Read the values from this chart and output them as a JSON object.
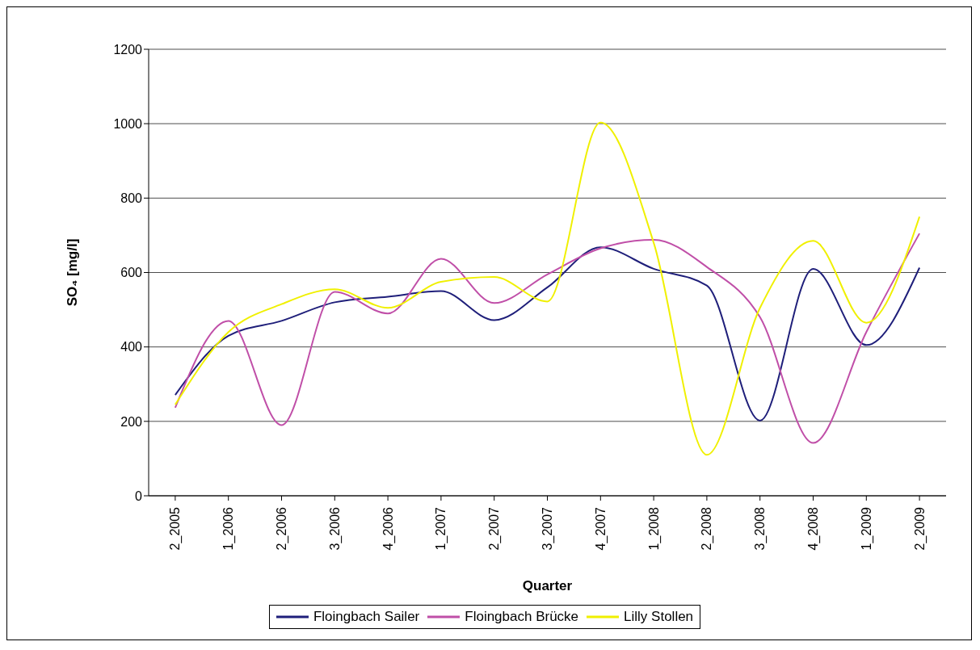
{
  "chart_data": {
    "type": "line",
    "xlabel": "Quarter",
    "ylabel": "SO₄ [mg/l]",
    "categories": [
      "2_2005",
      "1_2006",
      "2_2006",
      "3_2006",
      "4_2006",
      "1_2007",
      "2_2007",
      "3_2007",
      "4_2007",
      "1_2008",
      "2_2008",
      "3_2008",
      "4_2008",
      "1_2009",
      "2_2009"
    ],
    "series": [
      {
        "name": "Floingbach Sailer",
        "color": "#1f1f7a",
        "values": [
          271,
          430,
          470,
          520,
          535,
          550,
          472,
          560,
          668,
          610,
          565,
          202,
          610,
          405,
          613
        ]
      },
      {
        "name": "Floingbach Brücke",
        "color": "#c04fa8",
        "values": [
          237,
          470,
          190,
          548,
          490,
          637,
          518,
          595,
          665,
          688,
          615,
          480,
          142,
          440,
          705
        ]
      },
      {
        "name": "Lilly Stollen",
        "color": "#f0f000",
        "values": [
          245,
          440,
          515,
          555,
          505,
          575,
          588,
          522,
          1003,
          680,
          110,
          505,
          685,
          465,
          750
        ]
      }
    ],
    "ylim": [
      0,
      1200
    ],
    "yticks": [
      0,
      200,
      400,
      600,
      800,
      1000,
      1200
    ],
    "grid": "y",
    "legend": "bottom",
    "marker": "none",
    "line_style": "solid"
  }
}
